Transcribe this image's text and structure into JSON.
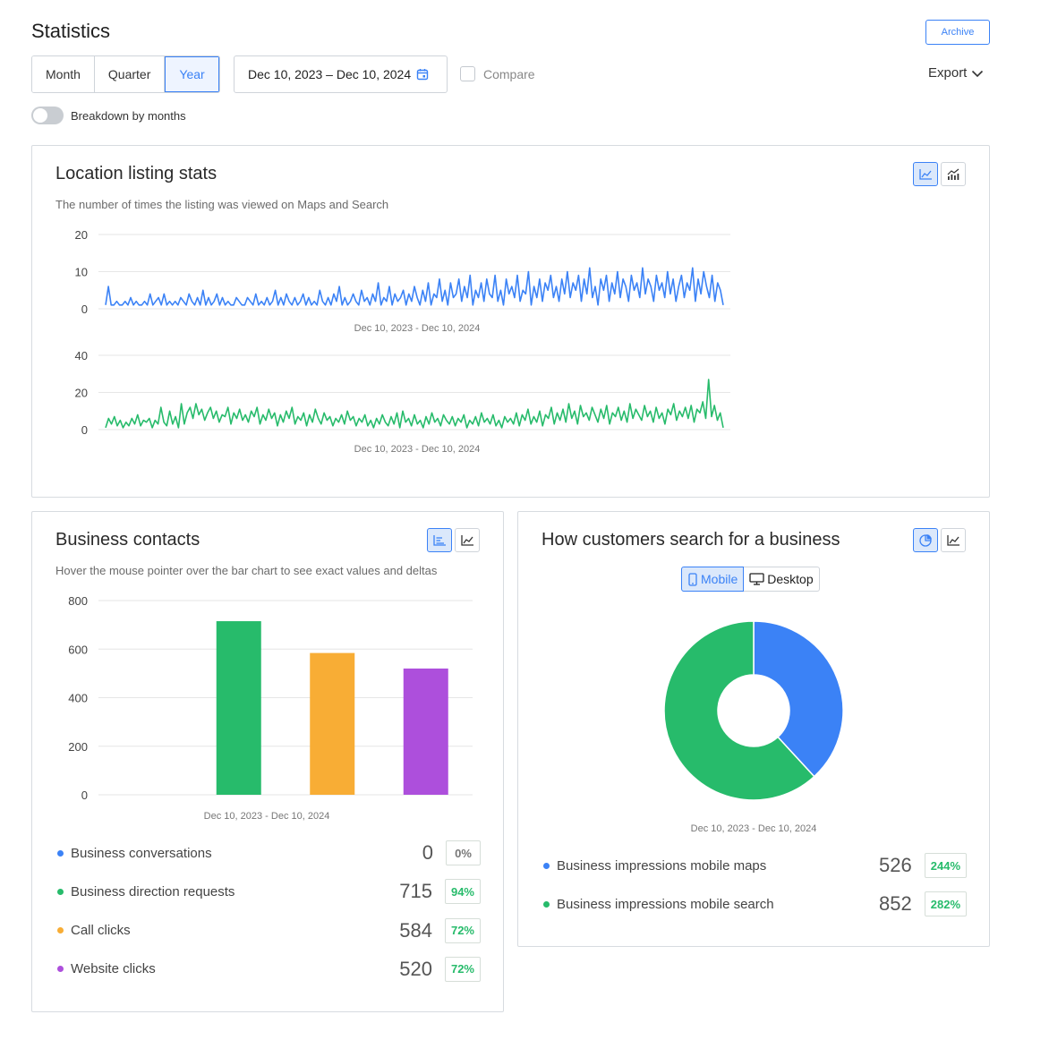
{
  "header": {
    "title": "Statistics",
    "archive_label": "Archive",
    "periods": [
      "Month",
      "Quarter",
      "Year"
    ],
    "active_period": "Year",
    "date_range": "Dec 10, 2023 – Dec 10, 2024",
    "compare_label": "Compare",
    "export_label": "Export",
    "breakdown_label": "Breakdown by months"
  },
  "colors": {
    "accent": "#3b82f6",
    "green": "#27bb6b",
    "orange": "#f8ad35",
    "purple": "#ad4fdc",
    "delta_positive": "#27bb6b",
    "delta_neutral": "#777777"
  },
  "listing": {
    "title": "Location listing stats",
    "subtitle": "The number of times the listing was viewed on Maps and Search",
    "mode_icons": [
      "line-chart-icon",
      "combined-chart-icon"
    ]
  },
  "contacts": {
    "title": "Business contacts",
    "subtitle": "Hover the mouse pointer over the bar chart to see exact values and deltas",
    "mode_icons": [
      "bar-chart-icon",
      "line-chart-icon"
    ],
    "rows": [
      {
        "label": "Business conversations",
        "value": "0",
        "delta": "0%",
        "color": "#3b82f6",
        "delta_color": "#777777"
      },
      {
        "label": "Business direction requests",
        "value": "715",
        "delta": "94%",
        "color": "#27bb6b",
        "delta_color": "#27bb6b"
      },
      {
        "label": "Call clicks",
        "value": "584",
        "delta": "72%",
        "color": "#f8ad35",
        "delta_color": "#27bb6b"
      },
      {
        "label": "Website clicks",
        "value": "520",
        "delta": "72%",
        "color": "#ad4fdc",
        "delta_color": "#27bb6b"
      }
    ]
  },
  "search": {
    "title": "How customers search for a business",
    "mode_icons": [
      "pie-chart-icon",
      "line-chart-icon"
    ],
    "device_mobile": "Mobile",
    "device_desktop": "Desktop",
    "rows": [
      {
        "label": "Business impressions mobile maps",
        "value": "526",
        "delta": "244%",
        "color": "#3b82f6",
        "delta_color": "#27bb6b"
      },
      {
        "label": "Business impressions mobile search",
        "value": "852",
        "delta": "282%",
        "color": "#27bb6b",
        "delta_color": "#27bb6b"
      }
    ]
  },
  "chart_data": [
    {
      "type": "line",
      "series": [
        {
          "values": [
            1,
            6,
            1,
            1,
            2,
            1,
            1,
            2,
            1,
            3,
            1,
            2,
            1,
            1,
            2,
            1,
            4,
            1,
            2,
            3,
            1,
            4,
            1,
            2,
            1,
            2,
            1,
            3,
            2,
            1,
            4,
            2,
            1,
            3,
            1,
            5,
            1,
            3,
            1,
            2,
            4,
            1,
            3,
            1,
            2,
            1,
            1,
            3,
            2,
            1,
            1,
            3,
            2,
            1,
            4,
            1,
            2,
            1,
            3,
            1,
            2,
            5,
            1,
            3,
            1,
            4,
            2,
            1,
            3,
            1,
            2,
            4,
            1,
            3,
            1,
            2,
            1,
            5,
            2,
            1,
            3,
            1,
            4,
            2,
            6,
            1,
            3,
            1,
            2,
            4,
            2,
            1,
            5,
            2,
            3,
            1,
            4,
            2,
            7,
            1,
            3,
            2,
            6,
            1,
            4,
            2,
            3,
            5,
            1,
            4,
            2,
            6,
            3,
            1,
            5,
            2,
            7,
            1,
            4,
            3,
            8,
            2,
            5,
            1,
            7,
            3,
            4,
            8,
            2,
            6,
            3,
            9,
            1,
            5,
            3,
            7,
            2,
            8,
            4,
            3,
            9,
            2,
            5,
            1,
            8,
            4,
            6,
            3,
            9,
            2,
            5,
            4,
            10,
            1,
            6,
            3,
            8,
            2,
            7,
            5,
            9,
            3,
            6,
            2,
            8,
            4,
            10,
            3,
            7,
            5,
            9,
            2,
            8,
            4,
            11,
            3,
            6,
            1,
            8,
            5,
            9,
            2,
            7,
            4,
            10,
            3,
            8,
            6,
            2,
            9,
            5,
            7,
            3,
            11,
            4,
            8,
            6,
            2,
            9,
            5,
            7,
            3,
            10,
            4,
            8,
            2,
            6,
            9,
            3,
            7,
            5,
            11,
            2,
            8,
            4,
            10,
            6,
            3,
            9,
            2,
            7,
            5,
            1
          ],
          "color": "#3b82f6"
        }
      ],
      "y_ticks": [
        0,
        10,
        20
      ],
      "ylim": [
        0,
        20
      ],
      "xlabel": "Dec 10, 2023 - Dec 10, 2024"
    },
    {
      "type": "line",
      "series": [
        {
          "values": [
            1,
            6,
            3,
            7,
            2,
            5,
            1,
            4,
            2,
            6,
            3,
            8,
            2,
            5,
            4,
            6,
            1,
            5,
            3,
            12,
            4,
            2,
            10,
            3,
            7,
            1,
            14,
            3,
            9,
            12,
            6,
            14,
            8,
            11,
            5,
            9,
            12,
            6,
            10,
            4,
            8,
            7,
            12,
            3,
            9,
            6,
            11,
            5,
            8,
            4,
            10,
            7,
            12,
            3,
            8,
            5,
            11,
            6,
            9,
            2,
            8,
            4,
            10,
            6,
            12,
            3,
            7,
            5,
            9,
            2,
            8,
            4,
            11,
            6,
            3,
            9,
            5,
            7,
            2,
            6,
            4,
            8,
            3,
            10,
            5,
            7,
            2,
            6,
            4,
            8,
            2,
            5,
            1,
            6,
            3,
            8,
            4,
            2,
            7,
            3,
            9,
            1,
            10,
            4,
            6,
            2,
            8,
            3,
            5,
            1,
            7,
            3,
            9,
            4,
            6,
            2,
            8,
            5,
            3,
            7,
            2,
            6,
            4,
            8,
            1,
            5,
            3,
            7,
            2,
            9,
            4,
            6,
            3,
            8,
            2,
            5,
            1,
            7,
            4,
            6,
            3,
            9,
            2,
            8,
            5,
            11,
            3,
            7,
            4,
            10,
            2,
            8,
            6,
            12,
            3,
            9,
            5,
            11,
            4,
            14,
            6,
            10,
            3,
            13,
            7,
            9,
            5,
            12,
            8,
            4,
            11,
            6,
            13,
            3,
            9,
            7,
            12,
            5,
            10,
            4,
            14,
            6,
            11,
            8,
            5,
            13,
            7,
            10,
            4,
            12,
            6,
            9,
            3,
            11,
            8,
            14,
            5,
            10,
            7,
            12,
            6,
            13,
            4,
            11,
            9,
            15,
            6,
            27,
            7,
            13,
            5,
            9,
            1
          ],
          "color": "#27bb6b"
        }
      ],
      "y_ticks": [
        0,
        20,
        40
      ],
      "ylim": [
        0,
        40
      ],
      "xlabel": "Dec 10, 2023 - Dec 10, 2024"
    },
    {
      "type": "bar",
      "categories": [
        "Business conversations",
        "Business direction requests",
        "Call clicks",
        "Website clicks"
      ],
      "values": [
        0,
        715,
        584,
        520
      ],
      "colors": [
        "#3b82f6",
        "#27bb6b",
        "#f8ad35",
        "#ad4fdc"
      ],
      "y_ticks": [
        0,
        200,
        400,
        600,
        800
      ],
      "ylim": [
        0,
        800
      ],
      "xlabel": "Dec 10, 2023 - Dec 10, 2024"
    },
    {
      "type": "pie",
      "labels": [
        "Business impressions mobile maps",
        "Business impressions mobile search"
      ],
      "values": [
        526,
        852
      ],
      "colors": [
        "#3b82f6",
        "#27bb6b"
      ],
      "xlabel": "Dec 10, 2023 - Dec 10, 2024"
    }
  ]
}
